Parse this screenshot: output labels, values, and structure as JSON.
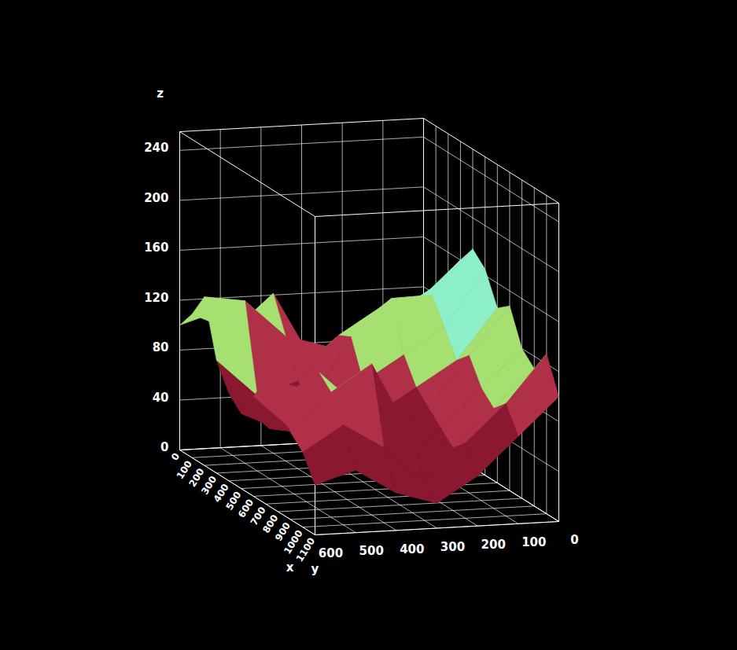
{
  "chart_data": {
    "type": "surface",
    "x_label": "x",
    "y_label": "y",
    "z_label": "z",
    "x": [
      0,
      100,
      200,
      300,
      400,
      500,
      600,
      700,
      800,
      900,
      1000,
      1100
    ],
    "y": [
      0,
      100,
      200,
      300,
      400,
      500,
      600
    ],
    "z": [
      [
        90,
        80,
        70,
        60,
        90,
        110,
        100
      ],
      [
        110,
        100,
        80,
        70,
        128,
        100,
        115
      ],
      [
        140,
        120,
        110,
        90,
        100,
        130,
        135
      ],
      [
        160,
        130,
        125,
        105,
        70,
        60,
        90
      ],
      [
        175,
        140,
        139,
        110,
        60,
        40,
        70
      ],
      [
        165,
        120,
        100,
        80,
        50,
        45,
        60
      ],
      [
        140,
        100,
        80,
        60,
        40,
        50,
        80
      ],
      [
        148,
        110,
        70,
        50,
        60,
        90,
        100
      ],
      [
        120,
        90,
        60,
        40,
        80,
        110,
        90
      ],
      [
        110,
        80,
        50,
        60,
        121,
        100,
        70
      ],
      [
        128,
        90,
        60,
        30,
        60,
        80,
        60
      ],
      [
        100,
        70,
        40,
        20,
        30,
        50,
        40
      ]
    ],
    "colors": [
      "#b03048",
      "#b03048",
      "#b03048",
      "#b03048",
      "#a6e070",
      "#a6e070",
      "#a6e070",
      "#a6e070",
      "#b03048",
      "#b03048",
      "#a6e070",
      "#a6e070",
      "#8ef0c8",
      "#a6e070",
      "#a6e070",
      "#b03048",
      "#b03048",
      "#a6e070",
      "#8ef0c8",
      "#8ef0c8",
      "#a6e070",
      "#b03048",
      "#8a1830",
      "#8a1830",
      "#8ef0c8",
      "#a6e070",
      "#a6e070",
      "#b03048",
      "#8a1830",
      "#8a1830",
      "#8ef0c8",
      "#a6e070",
      "#b03048",
      "#8a1830",
      "#8a1830",
      "#8a1830",
      "#a6e070",
      "#b03048",
      "#8a1830",
      "#8a1830",
      "#8a1830",
      "#b03048",
      "#a6e070",
      "#b03048",
      "#8a1830",
      "#8a1830",
      "#b03048",
      "#b03048",
      "#a6e070",
      "#b03048",
      "#8a1830",
      "#b03048",
      "#a6e070",
      "#b03048",
      "#a6e070",
      "#b03048",
      "#8a1830",
      "#8a1830",
      "#b03048",
      "#b03048",
      "#b03048",
      "#8a1830",
      "#8a1830",
      "#8a1830",
      "#8a1830",
      "#8a1830"
    ],
    "xlim": [
      0,
      1100
    ],
    "ylim": [
      0,
      600
    ],
    "zlim": [
      0,
      255
    ],
    "xticks": [
      0,
      100,
      200,
      300,
      400,
      500,
      600,
      700,
      800,
      900,
      1000,
      1100
    ],
    "yticks": [
      0,
      100,
      200,
      300,
      400,
      500,
      600
    ],
    "zticks": [
      0,
      40,
      80,
      120,
      160,
      200,
      240
    ],
    "grid": true
  }
}
